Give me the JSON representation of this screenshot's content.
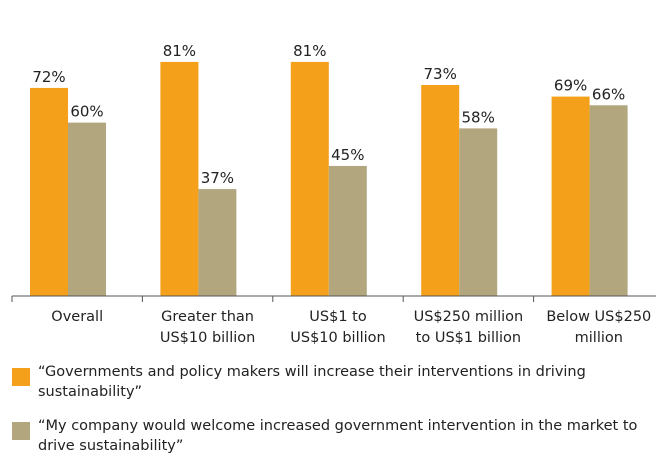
{
  "chart_data": {
    "type": "bar",
    "categories": [
      "Overall",
      "Greater than US$10 billion",
      "US$1 to US$10 billion",
      "US$250 million to US$1 billion",
      "Below US$250 million"
    ],
    "category_lines": [
      [
        "Overall"
      ],
      [
        "Greater than",
        "US$10 billion"
      ],
      [
        "US$1 to",
        "US$10 billion"
      ],
      [
        "US$250 million",
        "to US$1 billion"
      ],
      [
        "Below US$250",
        "million"
      ]
    ],
    "series": [
      {
        "name": "“Governments and policy makers will increase their interventions in driving sustainability”",
        "values": [
          72,
          81,
          81,
          73,
          69
        ],
        "labels": [
          "72%",
          "81%",
          "81%",
          "73%",
          "69%"
        ],
        "color": "#f5a01a"
      },
      {
        "name": "“My company would welcome increased government intervention in the market to drive sustainability”",
        "values": [
          60,
          37,
          45,
          58,
          66
        ],
        "labels": [
          "60%",
          "37%",
          "45%",
          "58%",
          "66%"
        ],
        "color": "#b2a67f"
      }
    ],
    "ylim": [
      0,
      100
    ],
    "grid": false,
    "legend": "bottom",
    "axis_color": "#555555"
  }
}
